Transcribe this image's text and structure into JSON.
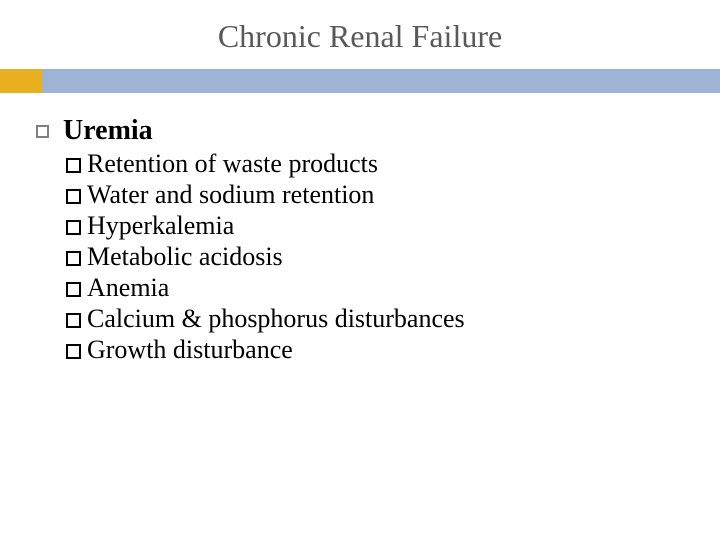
{
  "title": "Chronic Renal Failure",
  "title_color": "#595959",
  "title_fontsize": 32,
  "accent_left_color": "#e8b020",
  "accent_right_color": "#9db4d6",
  "accent_height": 24,
  "accent_left_width": 42,
  "background_color": "#ffffff",
  "body_fontsize_top": 28,
  "body_fontsize_sub": 26,
  "body_color": "#000000",
  "top_bullet_border_color": "#808080",
  "sub_bullet_border_color": "#000000",
  "content": {
    "heading": "Uremia",
    "items": [
      "Retention of waste products",
      "Water and sodium retention",
      "Hyperkalemia",
      "Metabolic acidosis",
      "Anemia",
      "Calcium & phosphorus disturbances",
      "Growth disturbance"
    ]
  }
}
